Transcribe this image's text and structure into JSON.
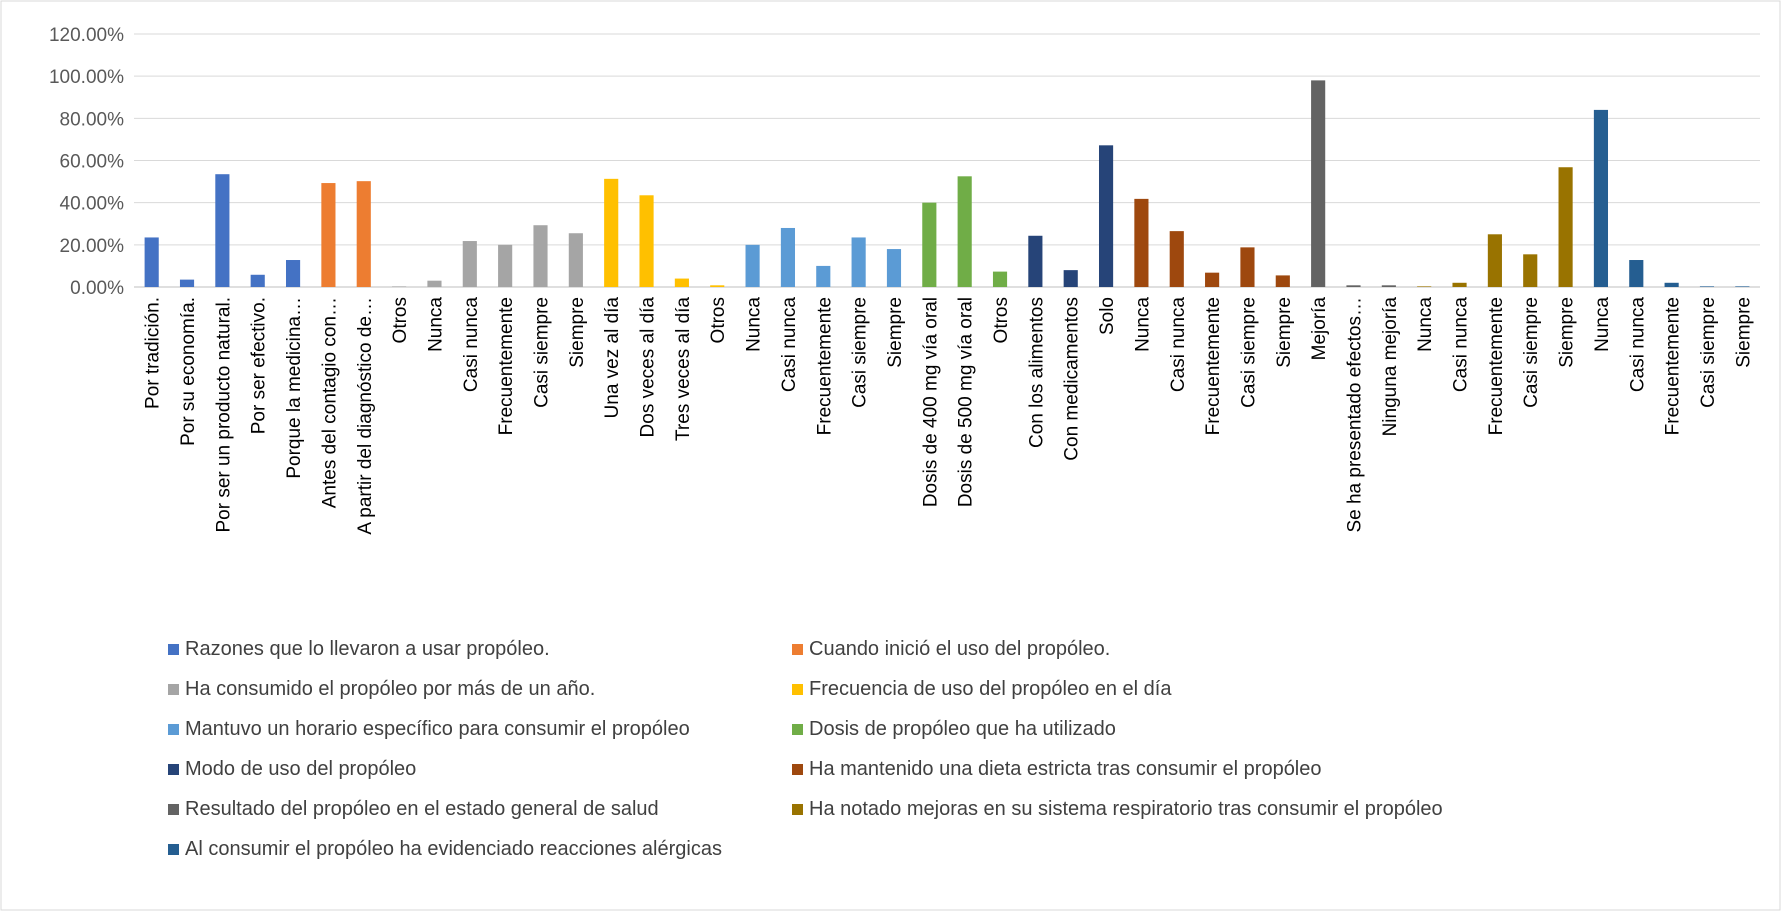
{
  "chart_data": {
    "type": "bar",
    "y_ticks": [
      "0.00%",
      "20.00%",
      "40.00%",
      "60.00%",
      "80.00%",
      "100.00%",
      "120.00%"
    ],
    "ylim": [
      0,
      120
    ],
    "grid": true,
    "legend_position": "bottom",
    "groups": [
      {
        "name": "Razones que lo llevaron a usar propóleo.",
        "color": "#4472C4",
        "categories": [
          "Por tradición.",
          "Por su economía.",
          "Por ser un producto natural.",
          "Por ser efectivo.",
          "Porque la medicina…"
        ],
        "values": [
          23.5,
          3.5,
          53.5,
          5.8,
          12.8
        ]
      },
      {
        "name": "Cuando inició el uso del propóleo.",
        "color": "#ED7D31",
        "categories": [
          "Antes del contagio con…",
          "A partir del diagnóstico de…"
        ],
        "values": [
          49.3,
          50.2
        ]
      },
      {
        "name": "Ha consumido el propóleo por más de un año.",
        "color": "#A5A5A5",
        "categories": [
          "Otros",
          "Nunca",
          "Casi nunca",
          "Frecuentemente",
          "Casi siempre",
          "Siempre"
        ],
        "values": [
          0.3,
          3.0,
          21.8,
          20.0,
          29.3,
          25.5
        ]
      },
      {
        "name": "Frecuencia de uso del propóleo en el día",
        "color": "#FFC000",
        "categories": [
          "Una vez al día",
          "Dos veces al día",
          "Tres veces al día",
          "Otros"
        ],
        "values": [
          51.3,
          43.5,
          4.0,
          0.8
        ]
      },
      {
        "name": "Mantuvo un horario específico para consumir el propóleo",
        "color": "#5B9BD5",
        "categories": [
          "Nunca",
          "Casi nunca",
          "Frecuentemente",
          "Casi siempre",
          "Siempre"
        ],
        "values": [
          20.0,
          28.0,
          10.0,
          23.5,
          18.0
        ]
      },
      {
        "name": "Dosis de propóleo que ha utilizado",
        "color": "#70AD47",
        "categories": [
          "Dosis de 400 mg vía oral",
          "Dosis de 500 mg vía oral",
          "Otros"
        ],
        "values": [
          40.0,
          52.5,
          7.3
        ]
      },
      {
        "name": "Modo de uso del propóleo",
        "color": "#264478",
        "categories": [
          "Con los alimentos",
          "Con medicamentos",
          "Solo"
        ],
        "values": [
          24.3,
          8.0,
          67.2
        ]
      },
      {
        "name": "Ha mantenido una dieta estricta tras consumir el propóleo",
        "color": "#9E480E",
        "categories": [
          "Nunca",
          "Casi nunca",
          "Frecuentemente",
          "Casi siempre",
          "Siempre"
        ],
        "values": [
          41.8,
          26.5,
          6.8,
          18.8,
          5.5
        ]
      },
      {
        "name": "Resultado del propóleo en el estado general de salud",
        "color": "#636363",
        "categories": [
          "Mejoría",
          "Se ha presentado efectos…",
          "Ninguna mejoría"
        ],
        "values": [
          98.0,
          0.8,
          0.8
        ]
      },
      {
        "name": "Ha notado mejoras en su sistema respiratorio tras consumir el propóleo",
        "color": "#997300",
        "categories": [
          "Nunca",
          "Casi nunca",
          "Frecuentemente",
          "Casi siempre",
          "Siempre"
        ],
        "values": [
          0.3,
          2.0,
          25.0,
          15.5,
          56.8
        ]
      },
      {
        "name": "Al consumir el propóleo ha evidenciado reacciones alérgicas",
        "color": "#255E91",
        "categories": [
          "Nunca",
          "Casi nunca",
          "Frecuentemente",
          "Casi siempre",
          "Siempre"
        ],
        "values": [
          84.0,
          12.8,
          2.0,
          0.3,
          0.3
        ]
      }
    ]
  }
}
